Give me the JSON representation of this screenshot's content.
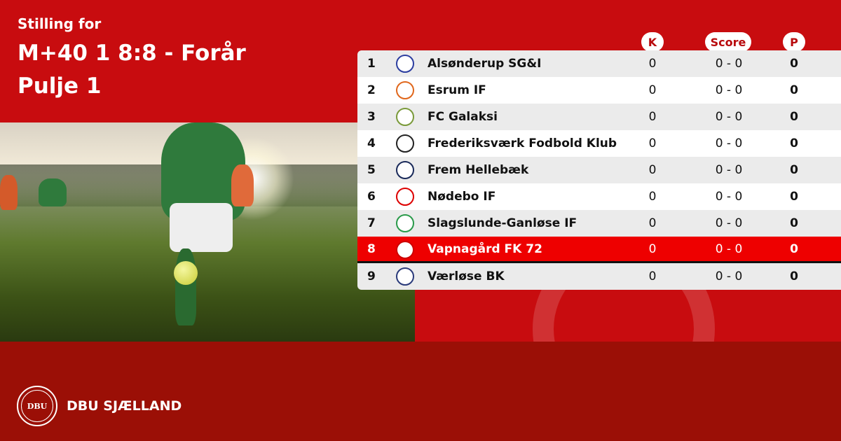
{
  "header": {
    "line1": "Stilling for",
    "line2": "M+40 1 8:8 - Forår",
    "line3": "Pulje 1"
  },
  "columns": {
    "k": "K",
    "score": "Score",
    "p": "P"
  },
  "colors": {
    "primary": "#c80c0f",
    "footer": "#9b0f06",
    "highlight": "#ee0000"
  },
  "rows": [
    {
      "pos": "1",
      "team": "Alsønderup SG&I",
      "k": "0",
      "score": "0 - 0",
      "p": "0"
    },
    {
      "pos": "2",
      "team": "Esrum IF",
      "k": "0",
      "score": "0 - 0",
      "p": "0"
    },
    {
      "pos": "3",
      "team": "FC Galaksi",
      "k": "0",
      "score": "0 - 0",
      "p": "0"
    },
    {
      "pos": "4",
      "team": "Frederiksværk Fodbold Klub",
      "k": "0",
      "score": "0 - 0",
      "p": "0"
    },
    {
      "pos": "5",
      "team": "Frem Hellebæk",
      "k": "0",
      "score": "0 - 0",
      "p": "0"
    },
    {
      "pos": "6",
      "team": "Nødebo IF",
      "k": "0",
      "score": "0 - 0",
      "p": "0"
    },
    {
      "pos": "7",
      "team": "Slagslunde-Ganløse IF",
      "k": "0",
      "score": "0 - 0",
      "p": "0"
    },
    {
      "pos": "8",
      "team": "Vapnagård FK 72",
      "k": "0",
      "score": "0 - 0",
      "p": "0",
      "highlighted": true
    },
    {
      "pos": "9",
      "team": "Værløse BK",
      "k": "0",
      "score": "0 - 0",
      "p": "0"
    }
  ],
  "footer": {
    "brand": "DBU SJÆLLAND",
    "seal_text": "DBU"
  }
}
